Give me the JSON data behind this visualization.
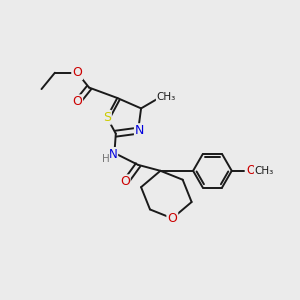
{
  "bg_color": "#ebebeb",
  "bond_color": "#1a1a1a",
  "bond_width": 1.4,
  "dbo": 0.12,
  "S_color": "#cccc00",
  "N_color": "#0000dd",
  "O_color": "#cc0000",
  "C_color": "#1a1a1a",
  "fig_width": 3.0,
  "fig_height": 3.0,
  "dpi": 100,
  "xlim": [
    0,
    10
  ],
  "ylim": [
    0,
    10
  ]
}
